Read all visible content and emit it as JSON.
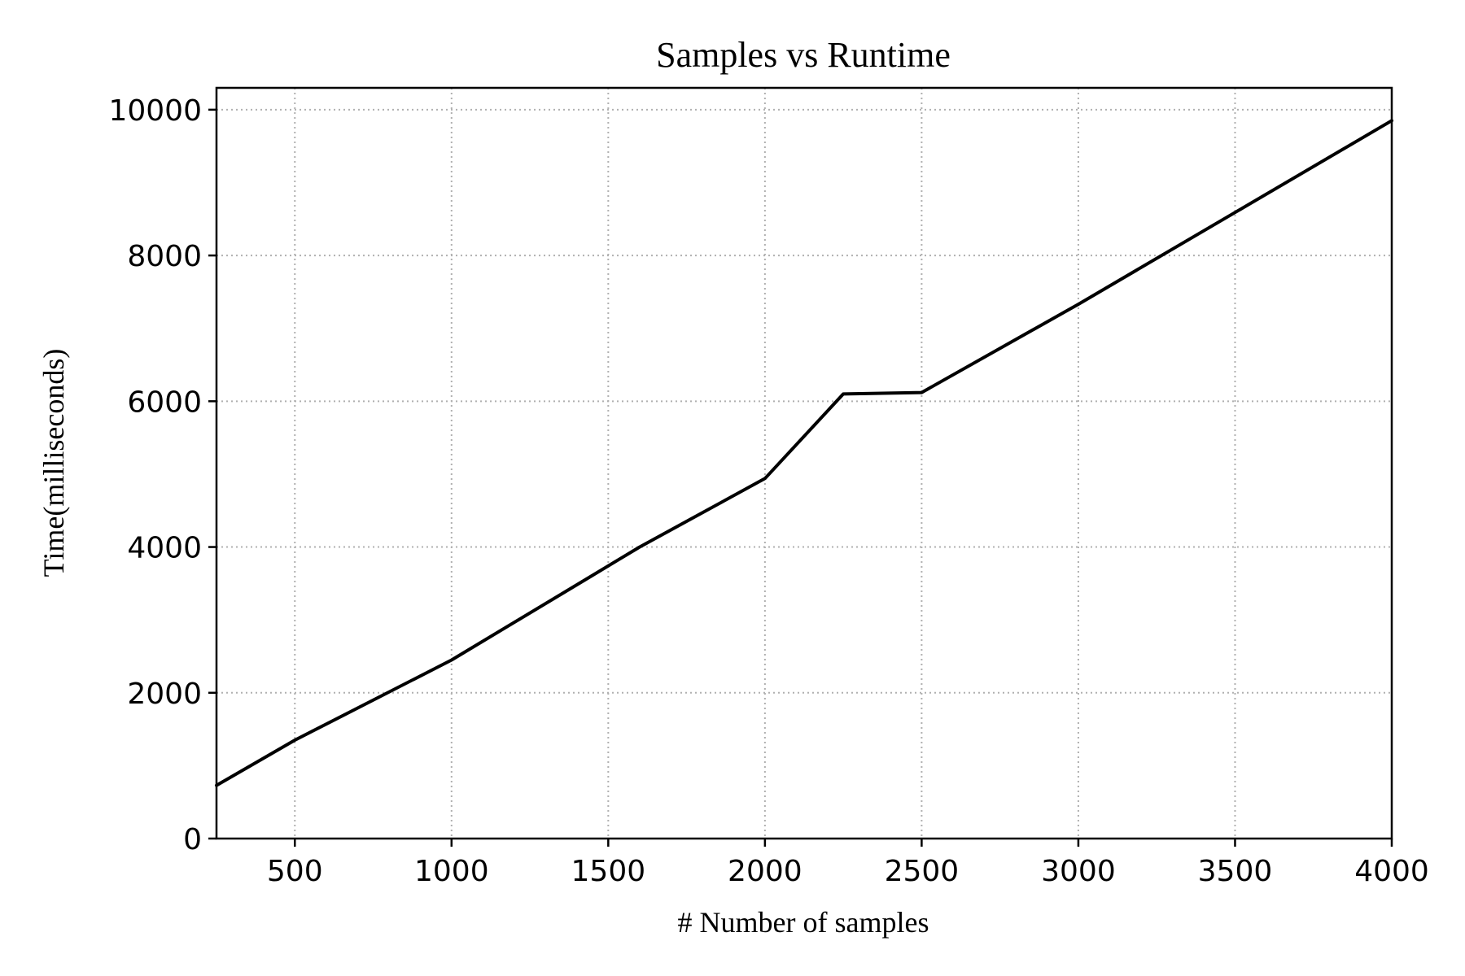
{
  "chart_data": {
    "type": "line",
    "title": "Samples vs Runtime",
    "xlabel": "# Number of samples",
    "ylabel": "Time(milliseconds)",
    "xlim": [
      250,
      4000
    ],
    "ylim": [
      0,
      10300
    ],
    "grid": true,
    "grid_style": "dotted",
    "x_ticks": [
      500,
      1000,
      1500,
      2000,
      2500,
      3000,
      3500,
      4000
    ],
    "y_ticks": [
      0,
      2000,
      4000,
      6000,
      8000,
      10000
    ],
    "x_tick_labels": [
      "500",
      "1000",
      "1500",
      "2000",
      "2500",
      "3000",
      "3500",
      "4000"
    ],
    "y_tick_labels": [
      "0",
      "2000",
      "4000",
      "6000",
      "8000",
      "10000"
    ],
    "series": [
      {
        "color": "#000000",
        "x": [
          250,
          500,
          1000,
          1430,
          1600,
          2000,
          2250,
          2500,
          3000,
          3500,
          4000
        ],
        "y": [
          730,
          1350,
          2450,
          3560,
          4000,
          4940,
          6100,
          6120,
          7330,
          8590,
          9850
        ]
      }
    ]
  }
}
